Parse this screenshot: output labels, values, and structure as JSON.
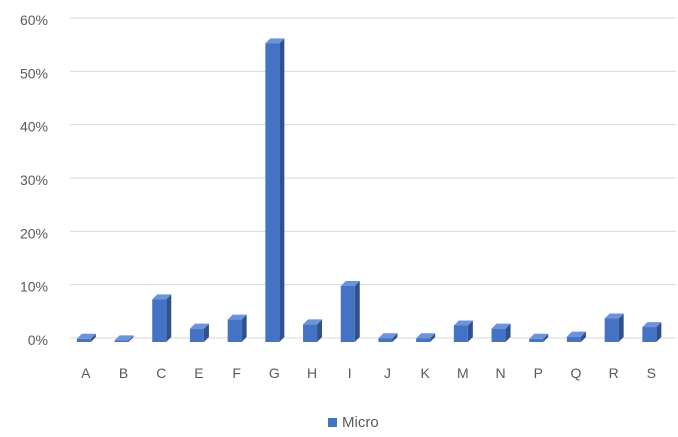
{
  "chart_data": {
    "type": "bar",
    "categories": [
      "A",
      "B",
      "C",
      "E",
      "F",
      "G",
      "H",
      "I",
      "J",
      "K",
      "M",
      "N",
      "P",
      "Q",
      "R",
      "S"
    ],
    "series": [
      {
        "name": "Micro",
        "color": "#4472C4",
        "values": [
          0.6,
          0.3,
          8.0,
          2.5,
          4.2,
          56.0,
          3.3,
          10.5,
          0.7,
          0.7,
          3.1,
          2.5,
          0.6,
          1.0,
          4.4,
          2.8
        ]
      }
    ],
    "ylim": [
      0,
      60
    ],
    "yticks": [
      "0%",
      "10%",
      "20%",
      "30%",
      "40%",
      "50%",
      "60%"
    ],
    "grid": true,
    "legend_position": "bottom",
    "style": "3d-clustered-column"
  }
}
